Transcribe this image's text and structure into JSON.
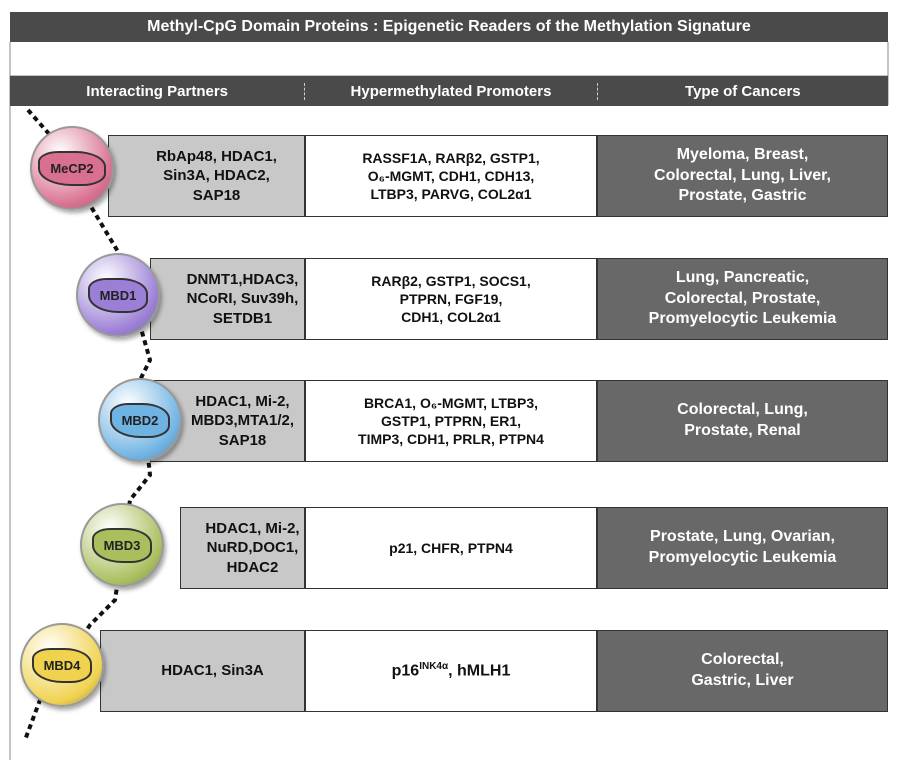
{
  "title": "Methyl-CpG Domain Proteins : Epigenetic Readers of the Methylation Signature",
  "headers": [
    "Interacting Partners",
    "Hypermethylated Promoters",
    "Type of Cancers"
  ],
  "rows": [
    {
      "protein": "MeCP2",
      "color": "#d9708f",
      "partners": [
        "RbAp48, HDAC1,",
        "Sin3A, HDAC2,",
        "SAP18"
      ],
      "promoters": [
        "RASSF1A, RARβ2, GSTP1,",
        "O₆-MGMT, CDH1, CDH13,",
        "LTBP3, PARVG, COL2α1"
      ],
      "cancers": [
        "Myeloma, Breast,",
        "Colorectal, Lung, Liver,",
        "Prostate, Gastric"
      ]
    },
    {
      "protein": "MBD1",
      "color": "#9b7fd6",
      "partners": [
        "DNMT1,HDAC3,",
        "NCoRI, Suv39h,",
        "SETDB1"
      ],
      "promoters": [
        "RARβ2, GSTP1, SOCS1,",
        "PTPRN, FGF19,",
        "CDH1, COL2α1"
      ],
      "cancers": [
        "Lung, Pancreatic,",
        "Colorectal, Prostate,",
        "Promyelocytic Leukemia"
      ]
    },
    {
      "protein": "MBD2",
      "color": "#6fb3e3",
      "partners": [
        "HDAC1, Mi-2,",
        "MBD3,MTA1/2,",
        "SAP18"
      ],
      "promoters": [
        "BRCA1, O₆-MGMT, LTBP3,",
        "GSTP1, PTPRN, ER1,",
        "TIMP3, CDH1, PRLR, PTPN4"
      ],
      "cancers": [
        "Colorectal, Lung,",
        "Prostate, Renal"
      ]
    },
    {
      "protein": "MBD3",
      "color": "#a9bf5e",
      "partners": [
        "HDAC1, Mi-2,",
        "NuRD,DOC1,",
        "HDAC2"
      ],
      "promoters": [
        "p21, CHFR, PTPN4"
      ],
      "cancers": [
        "Prostate, Lung, Ovarian,",
        "Promyelocytic Leukemia"
      ]
    },
    {
      "protein": "MBD4",
      "color": "#f0d24e",
      "partners": [
        "HDAC1, Sin3A"
      ],
      "promoters": [
        {
          "base": "p16",
          "sup": "INK4α",
          "rest": ", hMLH1"
        }
      ],
      "cancers": [
        "Colorectal,",
        "Gastric, Liver"
      ]
    }
  ]
}
